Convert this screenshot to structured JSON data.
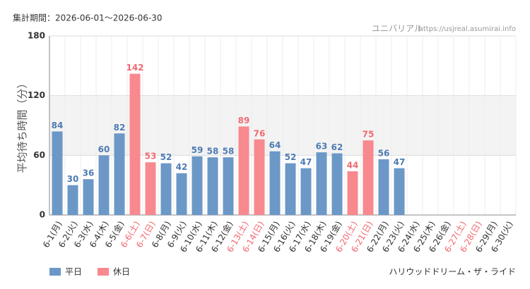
{
  "chart_data": {
    "type": "bar",
    "period": "集計期間：2026-06-01～2026-06-30",
    "site": "ユニバリアル",
    "url": "https://usjreal.asumirai.info",
    "ylabel": "平均待ち時間（分）",
    "attraction": "ハリウッドドリーム・ザ・ライド",
    "categories": [
      "6-1(月)",
      "6-2(火)",
      "6-3(水)",
      "6-4(木)",
      "6-5(金)",
      "6-6(土)",
      "6-7(日)",
      "6-8(月)",
      "6-9(火)",
      "6-10(水)",
      "6-11(木)",
      "6-12(金)",
      "6-13(土)",
      "6-14(日)",
      "6-15(月)",
      "6-16(火)",
      "6-17(水)",
      "6-18(木)",
      "6-19(金)",
      "6-20(土)",
      "6-21(日)",
      "6-22(月)",
      "6-23(火)",
      "6-24(水)",
      "6-25(木)",
      "6-26(金)",
      "6-27(土)",
      "6-28(日)",
      "6-29(月)",
      "6-30(火)"
    ],
    "category_label_colors": [
      "#333",
      "#333",
      "#333",
      "#333",
      "#333",
      "#f06a72",
      "#f06a72",
      "#333",
      "#333",
      "#333",
      "#333",
      "#333",
      "#f06a72",
      "#f06a72",
      "#333",
      "#333",
      "#333",
      "#333",
      "#333",
      "#f06a72",
      "#f06a72",
      "#333",
      "#333",
      "#333",
      "#333",
      "#333",
      "#f06a72",
      "#f06a72",
      "#333",
      "#333"
    ],
    "series": [
      {
        "name": "平日",
        "color": "#6b98c7",
        "label_color": "#4d7bb2",
        "values": [
          84,
          30,
          36,
          60,
          82,
          null,
          null,
          52,
          42,
          59,
          58,
          58,
          null,
          null,
          64,
          52,
          47,
          63,
          62,
          null,
          null,
          56,
          47,
          null,
          null,
          null,
          null,
          null,
          null,
          null
        ]
      },
      {
        "name": "休日",
        "color": "#f8898f",
        "label_color": "#f06a72",
        "values": [
          null,
          null,
          null,
          null,
          null,
          142,
          53,
          null,
          null,
          null,
          null,
          null,
          89,
          76,
          null,
          null,
          null,
          null,
          null,
          44,
          75,
          null,
          null,
          null,
          null,
          null,
          null,
          null,
          null,
          null
        ]
      }
    ],
    "ylim": [
      0,
      180
    ],
    "yticks": [
      0,
      60,
      120,
      180
    ],
    "grid": true
  }
}
